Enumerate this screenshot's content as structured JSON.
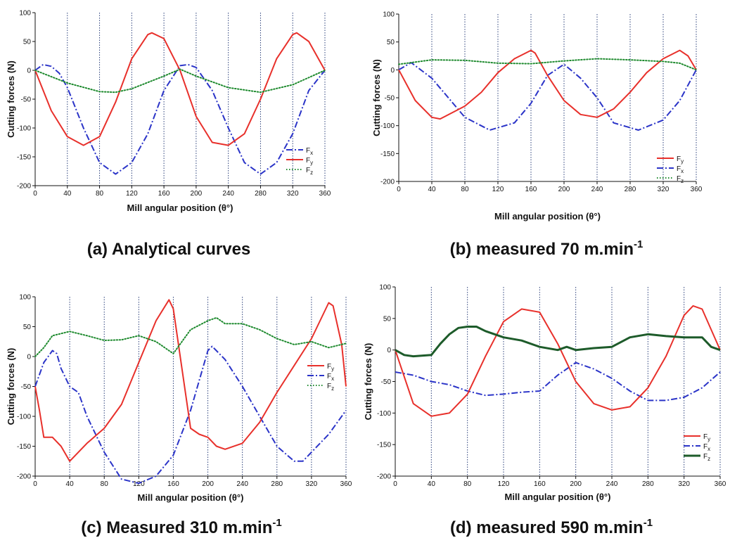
{
  "chart_data": [
    {
      "type": "line",
      "caption": "(a) Analytical curves",
      "xlabel": "Mill angular position (θ°)",
      "ylabel": "Cutting forces (N)",
      "xlim": [
        0,
        360
      ],
      "ylim": [
        -200,
        100
      ],
      "xticks": [
        0,
        40,
        80,
        120,
        160,
        200,
        240,
        280,
        320,
        360
      ],
      "yticks": [
        100,
        50,
        0,
        -50,
        -100,
        -150,
        -200
      ],
      "vlines": true,
      "legend_position": "bottom-right",
      "legend_order": [
        "Fx",
        "Fy",
        "Fz"
      ],
      "series": [
        {
          "name": "Fx",
          "color": "#2b34c8",
          "style": "dashdot",
          "x": [
            0,
            10,
            20,
            30,
            40,
            60,
            80,
            100,
            120,
            140,
            160,
            180,
            190,
            200,
            220,
            240,
            260,
            280,
            300,
            320,
            340,
            360
          ],
          "y": [
            0,
            10,
            7,
            -5,
            -30,
            -100,
            -160,
            -180,
            -160,
            -110,
            -35,
            8,
            10,
            5,
            -35,
            -100,
            -160,
            -180,
            -160,
            -110,
            -35,
            0
          ]
        },
        {
          "name": "Fy",
          "color": "#e8302b",
          "style": "solid",
          "x": [
            0,
            20,
            40,
            60,
            80,
            100,
            120,
            140,
            145,
            160,
            180,
            200,
            220,
            240,
            260,
            280,
            300,
            320,
            325,
            340,
            360
          ],
          "y": [
            0,
            -70,
            -115,
            -130,
            -115,
            -55,
            20,
            62,
            65,
            55,
            0,
            -80,
            -125,
            -130,
            -110,
            -50,
            20,
            62,
            65,
            50,
            0
          ]
        },
        {
          "name": "Fz",
          "color": "#1e8a2e",
          "style": "dotted",
          "x": [
            0,
            40,
            80,
            100,
            120,
            160,
            180,
            200,
            240,
            280,
            320,
            360
          ],
          "y": [
            0,
            -22,
            -37,
            -38,
            -32,
            -10,
            2,
            -10,
            -30,
            -38,
            -25,
            0
          ]
        }
      ]
    },
    {
      "type": "line",
      "caption": "(b) measured 70 m.min",
      "caption_sup": "-1",
      "xlabel": "Mill angular position (θ°)",
      "ylabel": "Cutting forces (N)",
      "xlim": [
        0,
        360
      ],
      "ylim": [
        -200,
        100
      ],
      "xticks": [
        0,
        40,
        80,
        120,
        160,
        200,
        240,
        280,
        320,
        360
      ],
      "yticks": [
        100,
        50,
        0,
        -50,
        -100,
        -150,
        -200
      ],
      "vlines": true,
      "legend_position": "bottom-right",
      "legend_order": [
        "Fy",
        "Fx",
        "Fz"
      ],
      "series": [
        {
          "name": "Fx",
          "color": "#2b34c8",
          "style": "dashdot",
          "x": [
            0,
            15,
            40,
            80,
            110,
            140,
            160,
            180,
            200,
            220,
            240,
            260,
            290,
            320,
            340,
            360
          ],
          "y": [
            0,
            13,
            -15,
            -85,
            -108,
            -95,
            -60,
            -10,
            10,
            -15,
            -50,
            -95,
            -108,
            -90,
            -55,
            0
          ]
        },
        {
          "name": "Fy",
          "color": "#e8302b",
          "style": "solid",
          "x": [
            0,
            20,
            40,
            50,
            80,
            100,
            120,
            140,
            160,
            165,
            180,
            200,
            220,
            240,
            260,
            280,
            300,
            320,
            340,
            350,
            360
          ],
          "y": [
            0,
            -55,
            -85,
            -88,
            -65,
            -40,
            -5,
            20,
            35,
            30,
            -10,
            -55,
            -80,
            -85,
            -70,
            -40,
            -5,
            20,
            35,
            25,
            0
          ]
        },
        {
          "name": "Fz",
          "color": "#1e8a2e",
          "style": "dotted",
          "x": [
            0,
            40,
            80,
            120,
            160,
            200,
            240,
            280,
            320,
            340,
            360
          ],
          "y": [
            10,
            18,
            17,
            12,
            11,
            16,
            20,
            18,
            15,
            12,
            0
          ]
        }
      ]
    },
    {
      "type": "line",
      "caption": "(c) Measured 310 m.min",
      "caption_sup": "-1",
      "xlabel": "Mill angular position (θ°)",
      "ylabel": "Cutting forces (N)",
      "xlim": [
        0,
        360
      ],
      "ylim": [
        -200,
        100
      ],
      "xticks": [
        0,
        40,
        80,
        120,
        160,
        200,
        240,
        280,
        320,
        360
      ],
      "yticks": [
        100,
        50,
        0,
        -50,
        -100,
        -150,
        -200
      ],
      "vlines": true,
      "legend_position": "middle-right",
      "legend_order": [
        "Fy",
        "Fx",
        "Fz"
      ],
      "series": [
        {
          "name": "Fx",
          "color": "#2b34c8",
          "style": "dashdot",
          "x": [
            0,
            10,
            20,
            25,
            30,
            40,
            50,
            60,
            80,
            100,
            120,
            140,
            160,
            180,
            200,
            205,
            220,
            240,
            260,
            280,
            300,
            310,
            320,
            340,
            360
          ],
          "y": [
            -50,
            -10,
            10,
            5,
            -20,
            -50,
            -60,
            -100,
            -160,
            -205,
            -212,
            -200,
            -165,
            -90,
            10,
            17,
            -5,
            -50,
            -100,
            -150,
            -175,
            -175,
            -160,
            -130,
            -90
          ]
        },
        {
          "name": "Fy",
          "color": "#e8302b",
          "style": "solid",
          "x": [
            0,
            5,
            10,
            20,
            30,
            40,
            60,
            80,
            100,
            120,
            140,
            155,
            160,
            170,
            180,
            190,
            200,
            210,
            220,
            240,
            260,
            280,
            300,
            320,
            340,
            345,
            355,
            360
          ],
          "y": [
            -50,
            -90,
            -135,
            -135,
            -150,
            -175,
            -145,
            -120,
            -80,
            -10,
            60,
            95,
            80,
            -20,
            -120,
            -130,
            -135,
            -150,
            -155,
            -145,
            -110,
            -60,
            -15,
            30,
            90,
            85,
            20,
            -50
          ]
        },
        {
          "name": "Fz",
          "color": "#1e8a2e",
          "style": "dotted",
          "x": [
            0,
            10,
            20,
            40,
            60,
            80,
            100,
            120,
            140,
            150,
            160,
            170,
            180,
            200,
            210,
            220,
            240,
            260,
            280,
            300,
            320,
            340,
            360
          ],
          "y": [
            0,
            15,
            35,
            42,
            35,
            27,
            28,
            35,
            25,
            15,
            5,
            25,
            45,
            60,
            65,
            55,
            55,
            45,
            30,
            20,
            25,
            15,
            22
          ]
        }
      ]
    },
    {
      "type": "line",
      "caption": "(d) measured 590 m.min",
      "caption_sup": "-1",
      "xlabel": "Mill angular position (θ°)",
      "ylabel": "Cutting forces (N)",
      "xlim": [
        0,
        360
      ],
      "ylim": [
        -200,
        100
      ],
      "xticks": [
        0,
        40,
        80,
        120,
        160,
        200,
        240,
        280,
        320,
        360
      ],
      "yticks": [
        100,
        50,
        0,
        -50,
        -100,
        -150,
        -200
      ],
      "vlines": true,
      "legend_position": "bottom-right",
      "legend_order": [
        "Fy",
        "Fx",
        "Fz"
      ],
      "series": [
        {
          "name": "Fx",
          "color": "#2b34c8",
          "style": "dashdot",
          "x": [
            0,
            20,
            40,
            60,
            80,
            100,
            120,
            140,
            160,
            180,
            200,
            220,
            240,
            260,
            280,
            300,
            320,
            340,
            360
          ],
          "y": [
            -35,
            -40,
            -50,
            -55,
            -65,
            -72,
            -70,
            -67,
            -65,
            -40,
            -20,
            -30,
            -45,
            -65,
            -80,
            -80,
            -75,
            -60,
            -35
          ]
        },
        {
          "name": "Fy",
          "color": "#e8302b",
          "style": "solid",
          "x": [
            0,
            20,
            40,
            60,
            80,
            100,
            120,
            140,
            160,
            180,
            200,
            220,
            240,
            260,
            280,
            300,
            320,
            330,
            340,
            360
          ],
          "y": [
            0,
            -85,
            -105,
            -100,
            -70,
            -10,
            45,
            65,
            60,
            10,
            -50,
            -85,
            -95,
            -90,
            -60,
            -10,
            55,
            70,
            65,
            0
          ]
        },
        {
          "name": "Fz",
          "color": "#1d5b2a",
          "style": "solid",
          "x": [
            0,
            10,
            20,
            40,
            50,
            60,
            70,
            80,
            90,
            100,
            120,
            140,
            160,
            180,
            190,
            200,
            220,
            240,
            260,
            280,
            300,
            320,
            340,
            350,
            360
          ],
          "y": [
            0,
            -8,
            -10,
            -8,
            10,
            25,
            35,
            37,
            37,
            30,
            20,
            15,
            5,
            0,
            5,
            0,
            3,
            5,
            20,
            25,
            22,
            20,
            20,
            5,
            0
          ]
        }
      ]
    }
  ]
}
